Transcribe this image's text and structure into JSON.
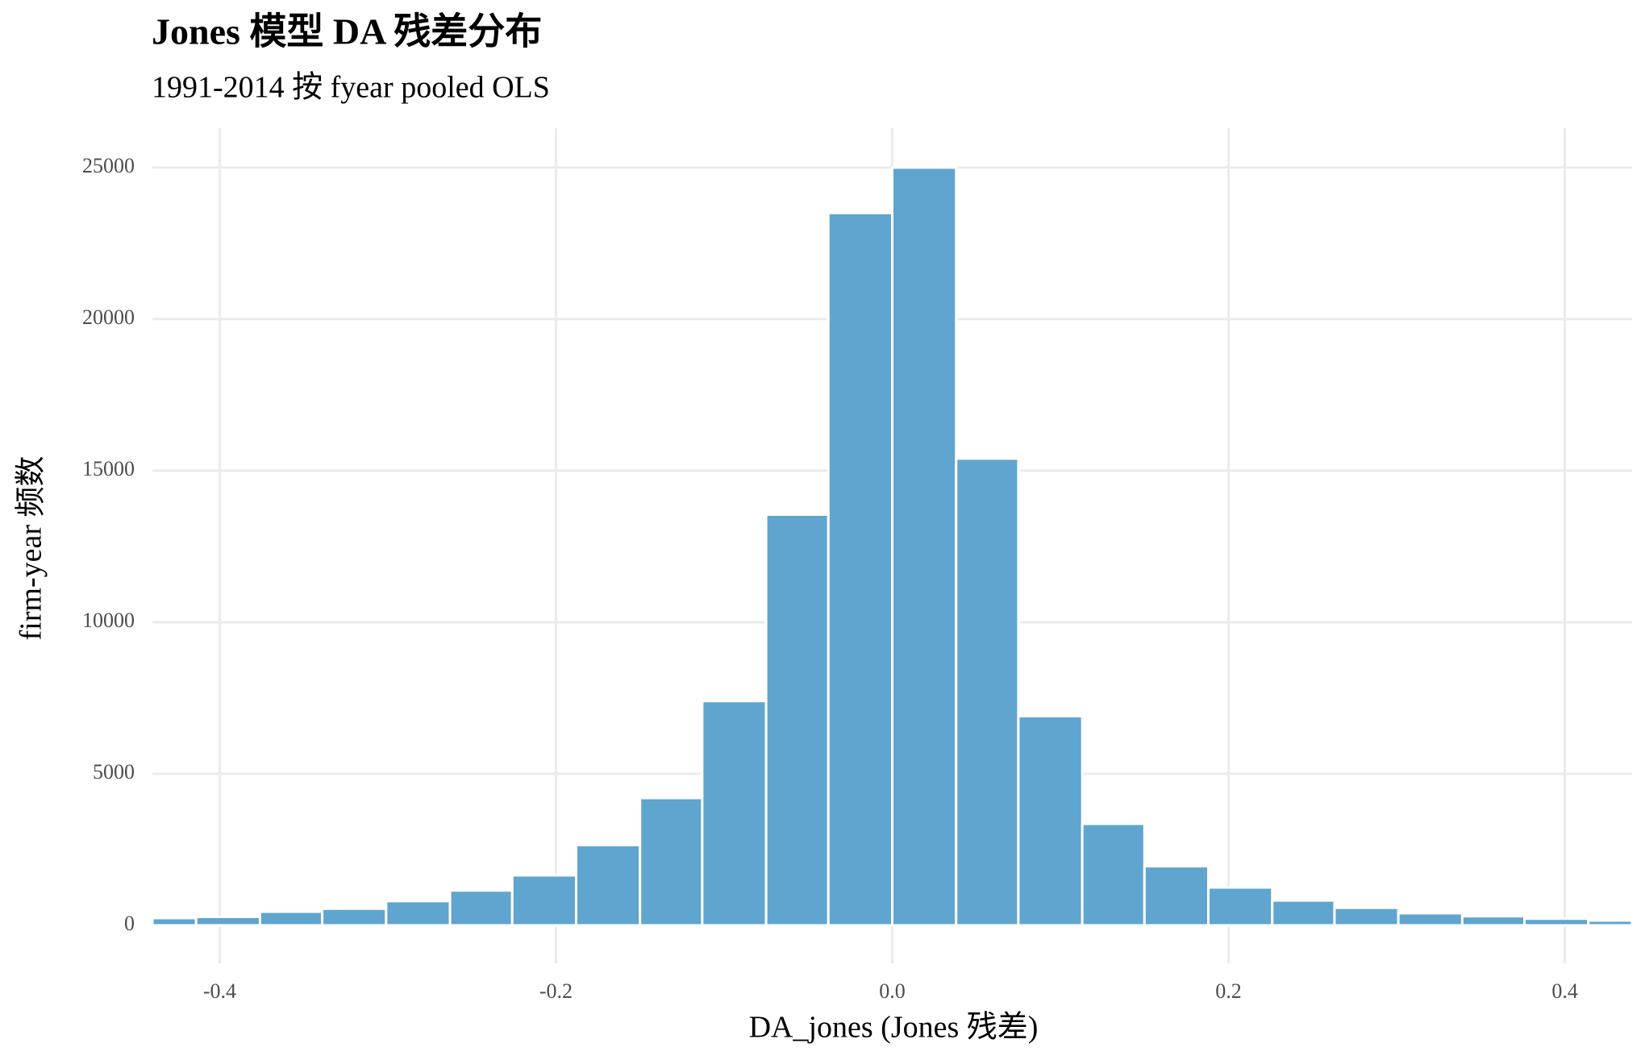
{
  "chart_data": {
    "type": "histogram",
    "title": "Jones 模型 DA 残差分布",
    "subtitle": "1991-2014 按 fyear pooled OLS",
    "x_label": "DA_jones (Jones 残差)",
    "y_label": "firm-year 频数",
    "bins": [
      -0.44,
      -0.414,
      -0.376,
      -0.339,
      -0.301,
      -0.263,
      -0.226,
      -0.188,
      -0.15,
      -0.113,
      -0.075,
      -0.038,
      0,
      0.038,
      0.075,
      0.113,
      0.15,
      0.188,
      0.226,
      0.263,
      0.301,
      0.339,
      0.376,
      0.414,
      0.44
    ],
    "values": [
      240,
      280,
      450,
      550,
      800,
      1150,
      1650,
      2650,
      4200,
      7400,
      13550,
      23500,
      25000,
      15400,
      6900,
      3350,
      1950,
      1250,
      820,
      580,
      400,
      300,
      220,
      160
    ],
    "color": "#5fa5d0",
    "xlim": [
      -0.44,
      0.44
    ],
    "ylim": [
      -1250,
      26300
    ],
    "xticks": [
      -0.4,
      -0.2,
      {
        "value": 0,
        "label": "0.0"
      },
      0.2,
      0.4
    ],
    "yticks": [
      0,
      5000,
      10000,
      15000,
      20000,
      25000
    ],
    "grid": true
  }
}
